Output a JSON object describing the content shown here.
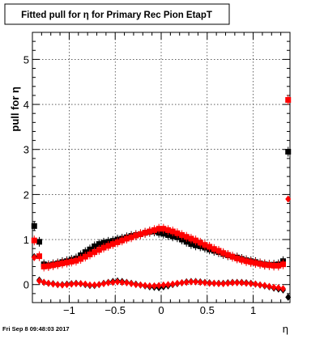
{
  "chart_data": {
    "type": "scatter",
    "title": "Fitted pull for  η for Primary Rec Pion EtapT",
    "xlabel": "η",
    "ylabel": "pull for  η",
    "xlim": [
      -1.4,
      1.4
    ],
    "ylim": [
      -0.4,
      5.6
    ],
    "x_ticks": [
      -1,
      -0.5,
      0,
      0.5,
      1
    ],
    "x_tick_labels": [
      "−1",
      "−0.5",
      "0",
      "0.5",
      "1"
    ],
    "y_ticks": [
      0,
      1,
      2,
      3,
      4,
      5
    ],
    "y_tick_labels": [
      "0",
      "1",
      "2",
      "3",
      "4",
      "5"
    ],
    "grid": true,
    "legend": "none",
    "x": [
      -1.38,
      -1.325,
      -1.275,
      -1.225,
      -1.175,
      -1.125,
      -1.075,
      -1.025,
      -0.975,
      -0.925,
      -0.875,
      -0.825,
      -0.775,
      -0.725,
      -0.675,
      -0.625,
      -0.575,
      -0.525,
      -0.475,
      -0.425,
      -0.375,
      -0.325,
      -0.275,
      -0.225,
      -0.175,
      -0.125,
      -0.075,
      -0.025,
      0.025,
      0.075,
      0.125,
      0.175,
      0.225,
      0.275,
      0.325,
      0.375,
      0.425,
      0.475,
      0.525,
      0.575,
      0.625,
      0.675,
      0.725,
      0.775,
      0.825,
      0.875,
      0.925,
      0.975,
      1.025,
      1.075,
      1.125,
      1.175,
      1.225,
      1.275,
      1.325,
      1.38
    ],
    "series": [
      {
        "color": "#000000",
        "marker": "square",
        "values": [
          1.3,
          0.95,
          0.45,
          0.43,
          0.45,
          0.47,
          0.5,
          0.52,
          0.55,
          0.58,
          0.65,
          0.72,
          0.78,
          0.85,
          0.9,
          0.93,
          0.95,
          0.97,
          1.0,
          1.02,
          1.05,
          1.08,
          1.1,
          1.12,
          1.15,
          1.17,
          1.18,
          1.15,
          1.13,
          1.1,
          1.07,
          1.05,
          1.0,
          0.95,
          0.9,
          0.87,
          0.85,
          0.82,
          0.78,
          0.75,
          0.72,
          0.68,
          0.65,
          0.62,
          0.6,
          0.57,
          0.54,
          0.52,
          0.5,
          0.47,
          0.45,
          0.44,
          0.44,
          0.45,
          0.52,
          2.95
        ]
      },
      {
        "color": "#ff0000",
        "marker": "square",
        "values": [
          0.98,
          0.63,
          0.4,
          0.41,
          0.43,
          0.45,
          0.47,
          0.49,
          0.51,
          0.53,
          0.57,
          0.62,
          0.67,
          0.72,
          0.77,
          0.82,
          0.86,
          0.9,
          0.94,
          0.98,
          1.02,
          1.05,
          1.09,
          1.12,
          1.15,
          1.18,
          1.21,
          1.24,
          1.24,
          1.21,
          1.18,
          1.14,
          1.1,
          1.06,
          1.02,
          0.98,
          0.93,
          0.88,
          0.84,
          0.79,
          0.75,
          0.7,
          0.66,
          0.62,
          0.58,
          0.55,
          0.52,
          0.5,
          0.48,
          0.46,
          0.44,
          0.43,
          0.42,
          0.42,
          0.45,
          4.1
        ]
      },
      {
        "color": "#000000",
        "marker": "diamond",
        "values": [
          0.62,
          0.1,
          0.05,
          0.03,
          0.02,
          0.0,
          0.0,
          0.01,
          0.02,
          0.03,
          0.02,
          0.0,
          -0.02,
          -0.02,
          0.0,
          0.03,
          0.05,
          0.07,
          0.08,
          0.07,
          0.05,
          0.03,
          0.01,
          -0.01,
          -0.03,
          -0.05,
          -0.06,
          -0.07,
          -0.05,
          -0.03,
          0.0,
          0.02,
          0.04,
          0.06,
          0.07,
          0.07,
          0.06,
          0.05,
          0.04,
          0.03,
          0.03,
          0.03,
          0.04,
          0.05,
          0.05,
          0.05,
          0.04,
          0.03,
          0.01,
          -0.01,
          -0.03,
          -0.05,
          -0.08,
          -0.1,
          -0.12,
          -0.28
        ]
      },
      {
        "color": "#ff0000",
        "marker": "diamond",
        "values": [
          0.6,
          0.08,
          0.05,
          0.03,
          0.01,
          0.0,
          -0.01,
          0.0,
          0.01,
          0.02,
          0.02,
          0.01,
          -0.01,
          -0.01,
          0.0,
          0.02,
          0.04,
          0.05,
          0.06,
          0.05,
          0.04,
          0.02,
          0.0,
          -0.01,
          -0.02,
          -0.03,
          -0.03,
          -0.02,
          -0.01,
          0.0,
          0.01,
          0.03,
          0.04,
          0.05,
          0.06,
          0.06,
          0.05,
          0.04,
          0.03,
          0.03,
          0.02,
          0.02,
          0.03,
          0.04,
          0.04,
          0.04,
          0.03,
          0.02,
          0.01,
          -0.01,
          -0.02,
          -0.04,
          -0.06,
          -0.07,
          -0.09,
          1.9
        ]
      }
    ]
  },
  "footer": {
    "timestamp": "Fri Sep  8 09:48:03 2017"
  }
}
